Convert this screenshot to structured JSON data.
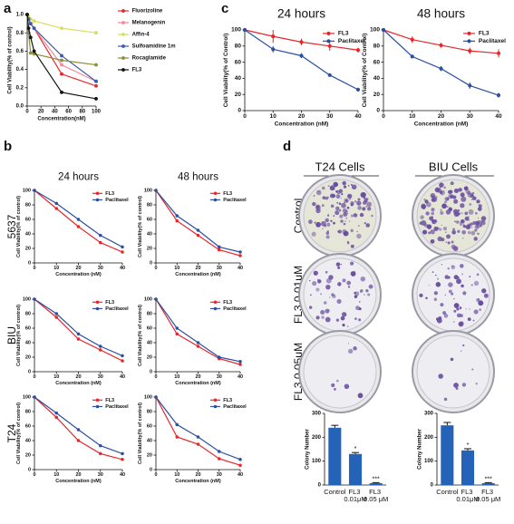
{
  "panel_letters": [
    "a",
    "b",
    "c",
    "d"
  ],
  "row_labels": [
    "5637",
    "BIU",
    "T24"
  ],
  "plate_columns": [
    "T24 Cells",
    "BIU Cells"
  ],
  "plate_rows": [
    "Control",
    "FL3 0.01μM",
    "FL3 0.05μM"
  ],
  "chart_data": [
    {
      "type": "line",
      "xlabel": "Concentration(nM)",
      "ylabel": "Cell Viability(% of control)",
      "x": [
        0,
        2,
        5,
        10,
        50,
        100
      ],
      "xlim": [
        0,
        100
      ],
      "xticks": [
        0,
        20,
        40,
        60,
        80,
        100
      ],
      "ylim": [
        0,
        1
      ],
      "yticks": [
        {
          "value": 0,
          "label": "0.0"
        },
        0.2,
        0.4,
        0.6,
        0.8,
        {
          "value": 1,
          "label": "1.0"
        }
      ],
      "legend": "right",
      "series": [
        {
          "name": "Fluorizoline",
          "color": "#e8262a",
          "values": [
            1.0,
            0.95,
            0.9,
            0.85,
            0.35,
            0.22
          ]
        },
        {
          "name": "Melanogenin",
          "color": "#f08a9a",
          "values": [
            1.0,
            0.95,
            0.9,
            0.85,
            0.45,
            0.27
          ]
        },
        {
          "name": "Affin-4",
          "color": "#d6e05a",
          "values": [
            1.0,
            0.98,
            0.95,
            0.93,
            0.85,
            0.8
          ]
        },
        {
          "name": "Sulfoamidine 1m",
          "color": "#3a5ea8",
          "values": [
            1.0,
            0.95,
            0.9,
            0.85,
            0.55,
            0.27
          ]
        },
        {
          "name": "Rocaglamide",
          "color": "#8c8c3a",
          "values": [
            1.0,
            0.8,
            0.58,
            0.57,
            0.5,
            0.45
          ]
        },
        {
          "name": "FL3",
          "color": "#111111",
          "values": [
            1.0,
            0.85,
            0.75,
            0.6,
            0.15,
            0.08
          ]
        }
      ]
    },
    {
      "type": "line",
      "title": "24 hours",
      "xlabel": "Concentration (nM)",
      "ylabel": "Cell Viability(% of control)",
      "x": [
        0,
        10,
        20,
        30,
        40
      ],
      "xlim": [
        0,
        40
      ],
      "xticks": [
        0,
        10,
        20,
        30,
        40
      ],
      "ylim": [
        0,
        100
      ],
      "yticks": [
        0,
        20,
        40,
        60,
        80,
        100
      ],
      "legend": "upper right",
      "series": [
        {
          "name": "FL3",
          "color": "#e8262a",
          "values": [
            100,
            75,
            50,
            28,
            15
          ]
        },
        {
          "name": "Paclitaxel",
          "color": "#2b4fa3",
          "values": [
            100,
            82,
            60,
            38,
            22
          ]
        }
      ]
    },
    {
      "type": "line",
      "title": "48 hours",
      "xlabel": "Concentration (nM)",
      "ylabel": "Cell Viability(% of control)",
      "x": [
        0,
        10,
        20,
        30,
        40
      ],
      "xlim": [
        0,
        40
      ],
      "xticks": [
        0,
        10,
        20,
        30,
        40
      ],
      "ylim": [
        0,
        100
      ],
      "yticks": [
        0,
        20,
        40,
        60,
        80,
        100
      ],
      "legend": "upper right",
      "series": [
        {
          "name": "FL3",
          "color": "#e8262a",
          "values": [
            100,
            58,
            38,
            18,
            10
          ]
        },
        {
          "name": "Paclitaxel",
          "color": "#2b4fa3",
          "values": [
            100,
            65,
            45,
            22,
            15
          ]
        }
      ]
    },
    {
      "type": "line",
      "xlabel": "Concentration (nM)",
      "ylabel": "Cell Viability(% of control)",
      "x": [
        0,
        10,
        20,
        30,
        40
      ],
      "xlim": [
        0,
        40
      ],
      "xticks": [
        0,
        10,
        20,
        30,
        40
      ],
      "ylim": [
        0,
        100
      ],
      "yticks": [
        0,
        20,
        40,
        60,
        80,
        100
      ],
      "legend": "upper right",
      "series": [
        {
          "name": "FL3",
          "color": "#e8262a",
          "values": [
            100,
            75,
            45,
            30,
            15
          ]
        },
        {
          "name": "Paclitaxel",
          "color": "#2b4fa3",
          "values": [
            100,
            80,
            52,
            35,
            22
          ]
        }
      ]
    },
    {
      "type": "line",
      "xlabel": "Concentration (nM)",
      "ylabel": "Cell Viability(% of control)",
      "x": [
        0,
        10,
        20,
        30,
        40
      ],
      "xlim": [
        0,
        40
      ],
      "xticks": [
        0,
        10,
        20,
        30,
        40
      ],
      "ylim": [
        0,
        100
      ],
      "yticks": [
        0,
        20,
        40,
        60,
        80,
        100
      ],
      "legend": "upper right",
      "series": [
        {
          "name": "FL3",
          "color": "#e8262a",
          "values": [
            100,
            52,
            35,
            18,
            10
          ]
        },
        {
          "name": "Paclitaxel",
          "color": "#2b4fa3",
          "values": [
            100,
            60,
            40,
            20,
            14
          ]
        }
      ]
    },
    {
      "type": "line",
      "xlabel": "Concentration (nM)",
      "ylabel": "Cell Viability(% of control)",
      "x": [
        0,
        10,
        20,
        30,
        40
      ],
      "xlim": [
        0,
        40
      ],
      "xticks": [
        0,
        10,
        20,
        30,
        40
      ],
      "ylim": [
        0,
        100
      ],
      "yticks": [
        0,
        20,
        40,
        60,
        80,
        100
      ],
      "legend": "upper right",
      "series": [
        {
          "name": "FL3",
          "color": "#e8262a",
          "values": [
            100,
            72,
            40,
            22,
            14
          ]
        },
        {
          "name": "Paclitaxel",
          "color": "#2b4fa3",
          "values": [
            100,
            78,
            55,
            33,
            22
          ]
        }
      ]
    },
    {
      "type": "line",
      "xlabel": "Concentration (nM)",
      "ylabel": "Cell Viability(% of control)",
      "x": [
        0,
        10,
        20,
        30,
        40
      ],
      "xlim": [
        0,
        40
      ],
      "xticks": [
        0,
        10,
        20,
        30,
        40
      ],
      "ylim": [
        0,
        100
      ],
      "yticks": [
        0,
        20,
        40,
        60,
        80,
        100
      ],
      "legend": "upper right",
      "series": [
        {
          "name": "FL3",
          "color": "#e8262a",
          "values": [
            100,
            45,
            35,
            15,
            6
          ]
        },
        {
          "name": "Paclitaxel",
          "color": "#2b4fa3",
          "values": [
            100,
            62,
            45,
            25,
            14
          ]
        }
      ]
    },
    {
      "type": "line",
      "title": "24 hours",
      "xlabel": "Concentration (nM)",
      "ylabel": "Cell Viability(% of Control)",
      "x": [
        0,
        10,
        20,
        30,
        40
      ],
      "xlim": [
        0,
        40
      ],
      "xticks": [
        0,
        10,
        20,
        30,
        40
      ],
      "ylim": [
        0,
        100
      ],
      "yticks": [
        0,
        20,
        40,
        60,
        80,
        100
      ],
      "legend": "upper right",
      "series": [
        {
          "name": "FL3",
          "color": "#e8262a",
          "values": [
            100,
            92,
            85,
            80,
            75
          ],
          "errors": [
            0,
            8,
            4,
            6,
            3
          ]
        },
        {
          "name": "Paclitaxel",
          "color": "#2b4fa3",
          "values": [
            100,
            76,
            68,
            44,
            26
          ],
          "errors": [
            0,
            4,
            3,
            2,
            2
          ]
        }
      ]
    },
    {
      "type": "line",
      "title": "48 hours",
      "xlabel": "Concentration (nM)",
      "ylabel": "Cell Viability(% of Control)",
      "x": [
        0,
        10,
        20,
        30,
        40
      ],
      "xlim": [
        0,
        40
      ],
      "xticks": [
        0,
        10,
        20,
        30,
        40
      ],
      "ylim": [
        0,
        100
      ],
      "yticks": [
        0,
        20,
        40,
        60,
        80,
        100
      ],
      "legend": "upper right",
      "series": [
        {
          "name": "FL3",
          "color": "#e8262a",
          "values": [
            100,
            88,
            81,
            74,
            71
          ],
          "errors": [
            0,
            4,
            3,
            4,
            5
          ]
        },
        {
          "name": "Paclitaxel",
          "color": "#2b4fa3",
          "values": [
            100,
            67,
            52,
            31,
            19
          ],
          "errors": [
            0,
            2,
            3,
            4,
            3
          ]
        }
      ]
    },
    {
      "type": "bar",
      "ylabel": "Colony Number",
      "color": "#2563b8",
      "categories": [
        "Control",
        "FL3 0.01μM",
        "FL3 0.05 μM"
      ],
      "values": [
        240,
        130,
        8
      ],
      "errors": [
        10,
        6,
        2
      ],
      "annotations": [
        null,
        "*",
        "***"
      ],
      "ylim": [
        0,
        300
      ],
      "yticks": [
        0,
        100,
        200,
        300
      ]
    },
    {
      "type": "bar",
      "ylabel": "Colony Number",
      "color": "#2563b8",
      "categories": [
        "Control",
        "FL3 0.01μM",
        "FL3 0.05 μM"
      ],
      "values": [
        250,
        145,
        8
      ],
      "errors": [
        12,
        7,
        2
      ],
      "annotations": [
        null,
        "*",
        "***"
      ],
      "ylim": [
        0,
        300
      ],
      "yticks": [
        0,
        100,
        200,
        300
      ]
    }
  ]
}
